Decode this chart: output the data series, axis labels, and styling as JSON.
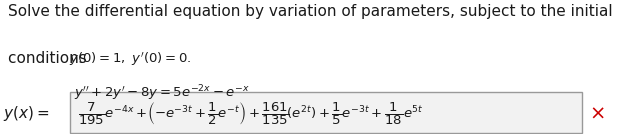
{
  "title_line1": "Solve the differential equation by variation of parameters, subject to the initial",
  "title_line2": "conditions ",
  "conditions_math": "$y(0) = 1,\\ y(0) = 0.$",
  "ode_label": "$y + 2y - 8y = 5e^{-2x} - e^{-x}$",
  "bg_color": "#ffffff",
  "text_color": "#1a1a1a",
  "red_x_color": "#cc0000",
  "font_size_main": 11,
  "font_size_math": 10.5
}
